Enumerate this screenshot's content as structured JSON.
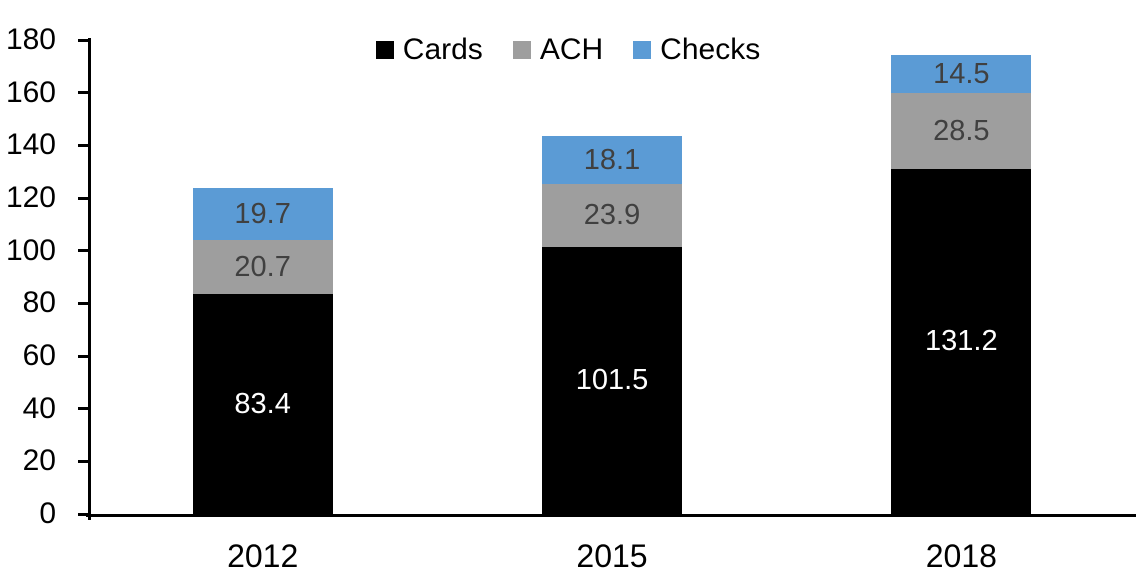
{
  "chart_data": {
    "type": "bar",
    "subtype": "stacked-column",
    "title": "",
    "categories": [
      "2012",
      "2015",
      "2018"
    ],
    "series": [
      {
        "name": "Cards",
        "color": "#000000",
        "label_color": "#ffffff",
        "values": [
          83.4,
          101.5,
          131.2
        ]
      },
      {
        "name": "ACH",
        "color": "#9e9e9e",
        "label_color": "#404040",
        "values": [
          20.7,
          23.9,
          28.5
        ]
      },
      {
        "name": "Checks",
        "color": "#5b9bd5",
        "label_color": "#404040",
        "values": [
          19.7,
          18.1,
          14.5
        ]
      }
    ],
    "xlabel": "",
    "ylabel": "",
    "ylim": [
      0,
      180
    ],
    "yticks": [
      0,
      20,
      40,
      60,
      80,
      100,
      120,
      140,
      160,
      180
    ],
    "grid": false,
    "legend_position": "top-center",
    "axis_color": "#000000",
    "background_color": "#ffffff"
  }
}
